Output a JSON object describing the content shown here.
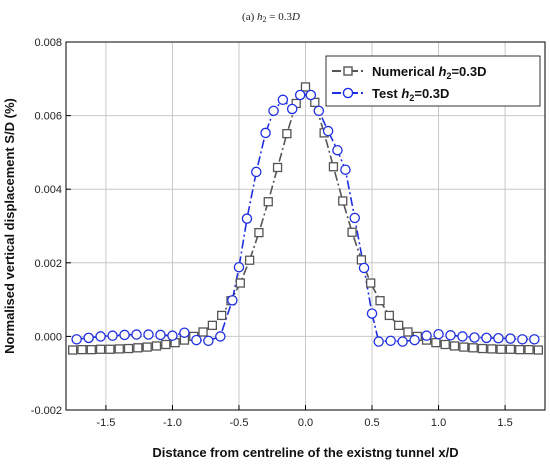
{
  "subtitle": {
    "label": "(a)",
    "var": "h",
    "sub": "2",
    "rest": " = 0.3",
    "unit": "D"
  },
  "chart_data": {
    "type": "line",
    "xlabel": "Distance from centreline of the existng tunnel x/D",
    "ylabel": "Normalised vertical displacement S/D (%)",
    "xlim": [
      -1.8,
      1.8
    ],
    "ylim": [
      -0.002,
      0.008
    ],
    "xticks": [
      -1.5,
      -1.0,
      -0.5,
      0.0,
      0.5,
      1.0,
      1.5
    ],
    "xtick_labels": [
      "-1.5",
      "-1.0",
      "-0.5",
      "0.0",
      "0.5",
      "1.0",
      "1.5"
    ],
    "yticks": [
      -0.002,
      0.0,
      0.002,
      0.004,
      0.006,
      0.008
    ],
    "ytick_labels": [
      "-0.002",
      "0.000",
      "0.002",
      "0.004",
      "0.006",
      "0.008"
    ],
    "grid": true,
    "legend_position": "top-right",
    "series": [
      {
        "legend_prefix": "Numerical ",
        "legend_var": "h",
        "legend_sub": "2",
        "legend_suffix": "=0.3D",
        "color": "#555555",
        "marker": "square",
        "line": "dash-dot",
        "x": [
          -1.75,
          -1.68,
          -1.61,
          -1.54,
          -1.47,
          -1.4,
          -1.33,
          -1.26,
          -1.19,
          -1.12,
          -1.05,
          -0.98,
          -0.91,
          -0.84,
          -0.77,
          -0.7,
          -0.63,
          -0.56,
          -0.49,
          -0.42,
          -0.35,
          -0.28,
          -0.21,
          -0.14,
          -0.07,
          0.0,
          0.07,
          0.14,
          0.21,
          0.28,
          0.35,
          0.42,
          0.49,
          0.56,
          0.63,
          0.7,
          0.77,
          0.84,
          0.91,
          0.98,
          1.05,
          1.12,
          1.19,
          1.26,
          1.33,
          1.4,
          1.47,
          1.54,
          1.61,
          1.68,
          1.75
        ],
        "y": [
          -0.00037,
          -0.00036,
          -0.00036,
          -0.00035,
          -0.00035,
          -0.00034,
          -0.00033,
          -0.00031,
          -0.00029,
          -0.00026,
          -0.00022,
          -0.00017,
          -0.0001,
          0.0,
          0.00012,
          0.0003,
          0.00057,
          0.00097,
          0.00145,
          0.00207,
          0.00282,
          0.00366,
          0.00459,
          0.00551,
          0.00633,
          0.00678,
          0.00636,
          0.00553,
          0.00461,
          0.00368,
          0.00283,
          0.00208,
          0.00145,
          0.00097,
          0.00057,
          0.0003,
          0.00012,
          0.0,
          -0.0001,
          -0.00017,
          -0.00022,
          -0.00026,
          -0.00029,
          -0.00031,
          -0.00033,
          -0.00034,
          -0.00035,
          -0.00035,
          -0.00036,
          -0.00036,
          -0.00037
        ]
      },
      {
        "legend_prefix": "Test ",
        "legend_var": "h",
        "legend_sub": "2",
        "legend_suffix": "=0.3D",
        "color": "#1f2fe0",
        "marker": "circle",
        "line": "dash-dot",
        "x": [
          -1.72,
          -1.63,
          -1.54,
          -1.45,
          -1.36,
          -1.27,
          -1.18,
          -1.09,
          -1.0,
          -0.91,
          -0.82,
          -0.73,
          -0.64,
          -0.55,
          -0.5,
          -0.44,
          -0.37,
          -0.3,
          -0.24,
          -0.17,
          -0.1,
          -0.04,
          0.04,
          0.1,
          0.17,
          0.24,
          0.3,
          0.37,
          0.44,
          0.5,
          0.55,
          0.64,
          0.73,
          0.82,
          0.91,
          1.0,
          1.09,
          1.18,
          1.27,
          1.36,
          1.45,
          1.54,
          1.63,
          1.72
        ],
        "y": [
          -8e-05,
          -4e-05,
          0.0,
          2e-05,
          4e-05,
          5e-05,
          5e-05,
          4e-05,
          2e-05,
          0.0001,
          -0.0001,
          -0.00012,
          0.0,
          0.00098,
          0.00188,
          0.0032,
          0.00447,
          0.00553,
          0.00613,
          0.00643,
          0.00618,
          0.00656,
          0.00656,
          0.00613,
          0.00558,
          0.00506,
          0.00453,
          0.00322,
          0.00186,
          0.00062,
          -0.00014,
          -0.00012,
          -0.00014,
          -0.0001,
          2e-05,
          6e-05,
          3e-05,
          0.0,
          -3e-05,
          -4e-05,
          -5e-05,
          -6e-05,
          -8e-05,
          -8e-05
        ]
      }
    ]
  }
}
